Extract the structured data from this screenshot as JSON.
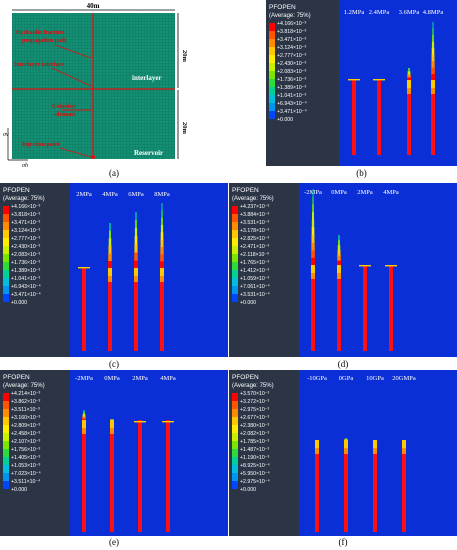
{
  "legend_palette": [
    "#ff0000",
    "#ff5500",
    "#ff8c00",
    "#ffc800",
    "#ffee00",
    "#c8f000",
    "#78e600",
    "#2ddc3a",
    "#00d296",
    "#00bedc",
    "#0096f0",
    "#0046ff",
    "#0000ff"
  ],
  "panel_a": {
    "label": "(a)",
    "width_label": "40m",
    "height_top": "20m",
    "height_bottom": "20m",
    "labels": [
      "Hydraulic fracture",
      "propagation path",
      "Interlayer interface",
      "interlayer",
      "Cohesive",
      "element",
      "Injection point",
      "Reservoir"
    ],
    "axis_h": "σh",
    "axis_v": "σv",
    "colors": {
      "mesh": "#0e8f6f",
      "lines": "#e01010",
      "text_red": "#d01010",
      "text_white": "#ffffff"
    }
  },
  "panel_b": {
    "label": "(b)",
    "legend_title": "PFOPEN",
    "legend_subtitle": "(Average: 75%)",
    "legend_values": [
      "+4.166×10⁻³",
      "+3.818×10⁻³",
      "+3.471×10⁻³",
      "+3.124×10⁻³",
      "+2.777×10⁻³",
      "+2.430×10⁻³",
      "+2.083×10⁻³",
      "+1.736×10⁻³",
      "+1.389×10⁻³",
      "+1.041×10⁻³",
      "+6.943×10⁻⁴",
      "+3.471×10⁻⁴",
      "+0.000"
    ],
    "column_labels": [
      "1.2MPa",
      "2.4MPa",
      "3.6MPa",
      "4.8MPa"
    ]
  },
  "panel_c": {
    "label": "(c)",
    "legend_title": "PFOPEN",
    "legend_subtitle": "(Average: 75%)",
    "legend_values": [
      "+4.166×10⁻³",
      "+3.818×10⁻³",
      "+3.471×10⁻³",
      "+3.124×10⁻³",
      "+2.777×10⁻³",
      "+2.430×10⁻³",
      "+2.083×10⁻³",
      "+1.736×10⁻³",
      "+1.389×10⁻³",
      "+1.041×10⁻³",
      "+6.943×10⁻⁴",
      "+3.471×10⁻⁴",
      "+0.000"
    ],
    "column_labels": [
      "2MPa",
      "4MPa",
      "6MPa",
      "8MPa"
    ]
  },
  "panel_d": {
    "label": "(d)",
    "legend_title": "PFOPEN",
    "legend_subtitle": "(Average: 75%)",
    "legend_values": [
      "+4.237×10⁻³",
      "+3.884×10⁻³",
      "+3.531×10⁻³",
      "+3.178×10⁻³",
      "+2.825×10⁻³",
      "+2.471×10⁻³",
      "+2.118×10⁻³",
      "+1.765×10⁻³",
      "+1.412×10⁻³",
      "+1.059×10⁻³",
      "+7.061×10⁻⁴",
      "+3.531×10⁻⁴",
      "+0.000"
    ],
    "column_labels": [
      "-2MPa",
      "0MPa",
      "2MPa",
      "4MPa"
    ]
  },
  "panel_e": {
    "label": "(e)",
    "legend_title": "PFOPEN",
    "legend_subtitle": "(Average: 75%)",
    "legend_values": [
      "+4.214×10⁻³",
      "+3.862×10⁻³",
      "+3.511×10⁻³",
      "+3.160×10⁻³",
      "+2.809×10⁻³",
      "+2.458×10⁻³",
      "+2.107×10⁻³",
      "+1.756×10⁻³",
      "+1.405×10⁻³",
      "+1.053×10⁻³",
      "+7.023×10⁻⁴",
      "+3.511×10⁻⁴",
      "+0.000"
    ],
    "column_labels": [
      "-2MPa",
      "0MPa",
      "2MPa",
      "4MPa"
    ]
  },
  "panel_f": {
    "label": "(f)",
    "legend_title": "PFOPEN",
    "legend_subtitle": "(Average: 75%)",
    "legend_values": [
      "+3.570×10⁻³",
      "+3.272×10⁻³",
      "+2.975×10⁻³",
      "+2.677×10⁻³",
      "+2.380×10⁻³",
      "+2.082×10⁻³",
      "+1.785×10⁻³",
      "+1.487×10⁻³",
      "+1.190×10⁻³",
      "+8.925×10⁻⁴",
      "+5.950×10⁻⁴",
      "+2.975×10⁻⁴",
      "+0.000"
    ],
    "column_labels": [
      "-10GPa",
      "0GPa",
      "10GPa",
      "20GMPa"
    ]
  }
}
